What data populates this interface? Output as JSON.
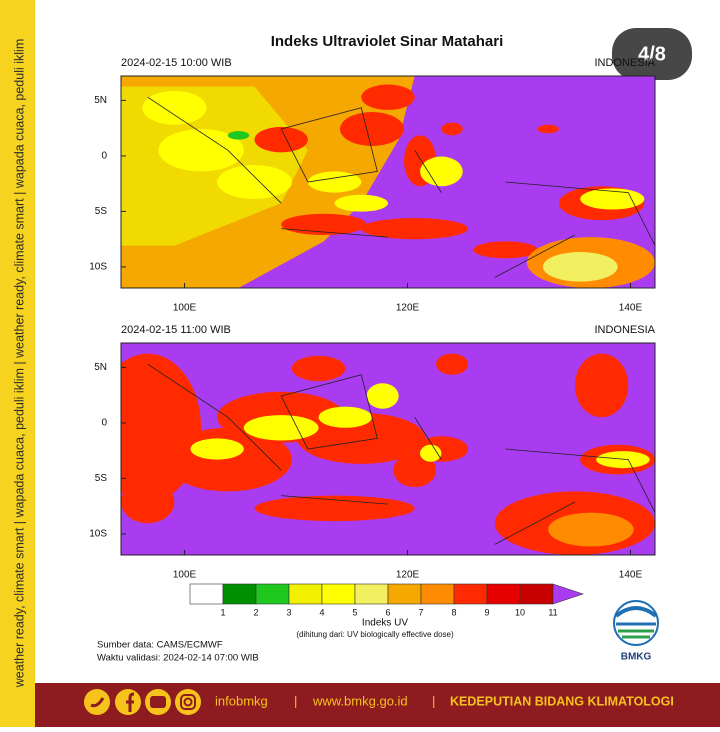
{
  "sidebar_text": "weather ready, climate smart | wapada cuaca, peduli iklim | weather ready, climate smart | wapada cuaca, peduli iklim",
  "page_counter": "4/8",
  "title": "Indeks Ultraviolet Sinar Matahari",
  "map_extent": {
    "xlim": [
      94.3,
      142.2
    ],
    "ylim": [
      -11.9,
      7.2
    ]
  },
  "panels": [
    {
      "datetime": "2024-02-15 10:00 WIB",
      "region": "INDONESIA"
    },
    {
      "datetime": "2024-02-15 11:00 WIB",
      "region": "INDONESIA"
    }
  ],
  "yticks": [
    {
      "value": 5,
      "label": "5N"
    },
    0,
    {
      "value": -5,
      "label": "5S"
    },
    {
      "value": -10,
      "label": "10S"
    }
  ],
  "xticks": [
    {
      "value": 100,
      "label": "100E"
    },
    {
      "value": 120,
      "label": "120E"
    },
    {
      "value": 140,
      "label": "140E"
    }
  ],
  "legend": {
    "title": "Indeks UV",
    "note": "(dihitung dari: UV biologically effective dose)",
    "ticks": [
      1,
      2,
      3,
      4,
      5,
      6,
      7,
      8,
      9,
      10,
      11
    ],
    "colors": [
      "#ffffff",
      "#008f00",
      "#1ec81e",
      "#f0f000",
      "#ffff00",
      "#f2f060",
      "#f5a800",
      "#ff8c00",
      "#ff2a00",
      "#e60000",
      "#c80000",
      "#a93cf0"
    ]
  },
  "source": "Sumber data: CAMS/ECMWF",
  "validity": "Waktu validasi: 2024-02-14 07:00 WIB",
  "logo": "BMKG",
  "footer": {
    "handle": "infobmkg",
    "separator": "|",
    "url": "www.bmkg.go.id",
    "department": "KEDEPUTIAN BIDANG KLIMATOLOGI"
  }
}
